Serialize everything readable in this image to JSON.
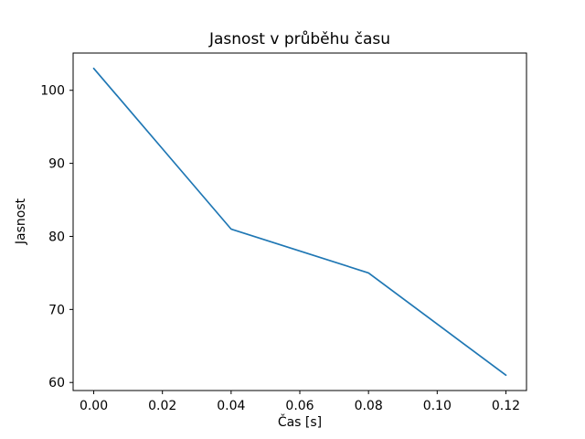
{
  "chart_data": {
    "type": "line",
    "title": "Jasnost v průběhu času",
    "xlabel": "Čas [s]",
    "ylabel": "Jasnost",
    "x": [
      0.0,
      0.02,
      0.04,
      0.06,
      0.08,
      0.1,
      0.12
    ],
    "y": [
      103,
      92,
      81,
      78,
      75,
      68,
      61
    ],
    "xlim": [
      -0.006,
      0.126
    ],
    "ylim": [
      58.9,
      105.1
    ],
    "xticks": [
      0.0,
      0.02,
      0.04,
      0.06,
      0.08,
      0.1,
      0.12
    ],
    "xtick_labels": [
      "0.00",
      "0.02",
      "0.04",
      "0.06",
      "0.08",
      "0.10",
      "0.12"
    ],
    "yticks": [
      60,
      70,
      80,
      90,
      100
    ],
    "ytick_labels": [
      "60",
      "70",
      "80",
      "90",
      "100"
    ],
    "grid": false,
    "legend": null,
    "line_color": "#1f77b4",
    "axis_color": "#000000",
    "background_color": "#ffffff"
  }
}
